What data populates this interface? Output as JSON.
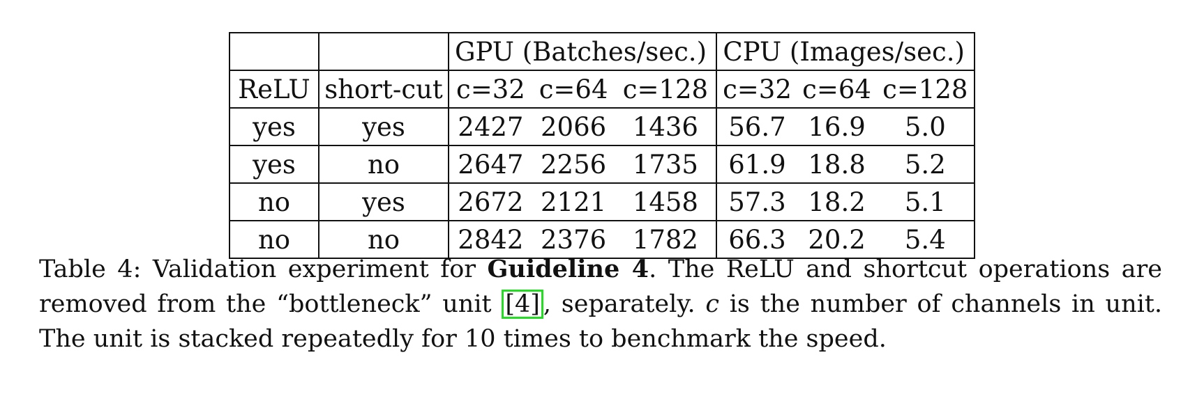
{
  "table": {
    "group_headers": {
      "gpu": "GPU (Batches/sec.)",
      "cpu": "CPU (Images/sec.)"
    },
    "columns": [
      "ReLU",
      "short-cut",
      "c=32",
      "c=64",
      "c=128",
      "c=32",
      "c=64",
      "c=128"
    ],
    "rows": [
      [
        "yes",
        "yes",
        "2427",
        "2066",
        "1436",
        "56.7",
        "16.9",
        "5.0"
      ],
      [
        "yes",
        "no",
        "2647",
        "2256",
        "1735",
        "61.9",
        "18.8",
        "5.2"
      ],
      [
        "no",
        "yes",
        "2672",
        "2121",
        "1458",
        "57.3",
        "18.2",
        "5.1"
      ],
      [
        "no",
        "no",
        "2842",
        "2376",
        "1782",
        "66.3",
        "20.2",
        "5.4"
      ]
    ]
  },
  "caption": {
    "prefix": "Table 4: Validation experiment for ",
    "bold": "Guideline 4",
    "mid1": ". The ReLU and shortcut operations are removed from the “bottleneck” unit ",
    "cite": "[4]",
    "mid2": ", separately. ",
    "var": "c",
    "suffix": " is the number of channels in unit. The unit is stacked repeatedly for 10 times to benchmark the speed."
  }
}
